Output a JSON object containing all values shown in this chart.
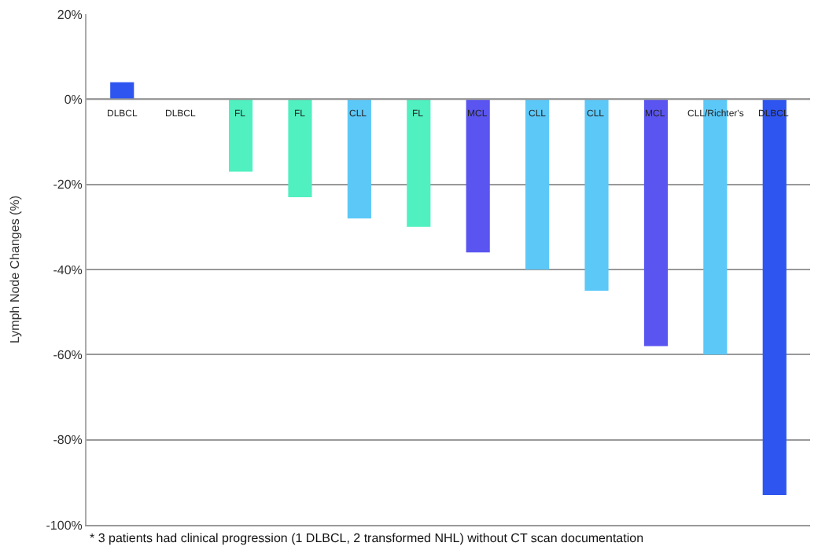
{
  "chart_data": {
    "type": "bar",
    "ylabel": "Lymph Node Changes (%)",
    "categories": [
      "DLBCL",
      "DLBCL",
      "FL",
      "FL",
      "CLL",
      "FL",
      "MCL",
      "CLL",
      "CLL",
      "MCL",
      "CLL/Richter's",
      "DLBCL"
    ],
    "values": [
      4,
      0,
      -17,
      -23,
      -28,
      -30,
      -36,
      -40,
      -45,
      -58,
      -60,
      -93
    ],
    "colors": [
      "#2e55f0",
      "#2e55f0",
      "#50f0c0",
      "#50f0c0",
      "#5bc8f8",
      "#50f0c0",
      "#5a55f0",
      "#5bc8f8",
      "#5bc8f8",
      "#5a55f0",
      "#5bc8f8",
      "#2e55f0"
    ],
    "ylim": [
      -100,
      20
    ],
    "yticks": [
      {
        "value": 20,
        "label": "20%"
      },
      {
        "value": 0,
        "label": "0%"
      },
      {
        "value": -20,
        "label": "-20%"
      },
      {
        "value": -40,
        "label": "-40%"
      },
      {
        "value": -60,
        "label": "-60%"
      },
      {
        "value": -80,
        "label": "-80%"
      },
      {
        "value": -100,
        "label": "-100%"
      }
    ],
    "grid": "y",
    "annotations": [
      "* 3 patients had clinical progression (1 DLBCL, 2 transformed NHL) without CT scan documentation"
    ]
  }
}
